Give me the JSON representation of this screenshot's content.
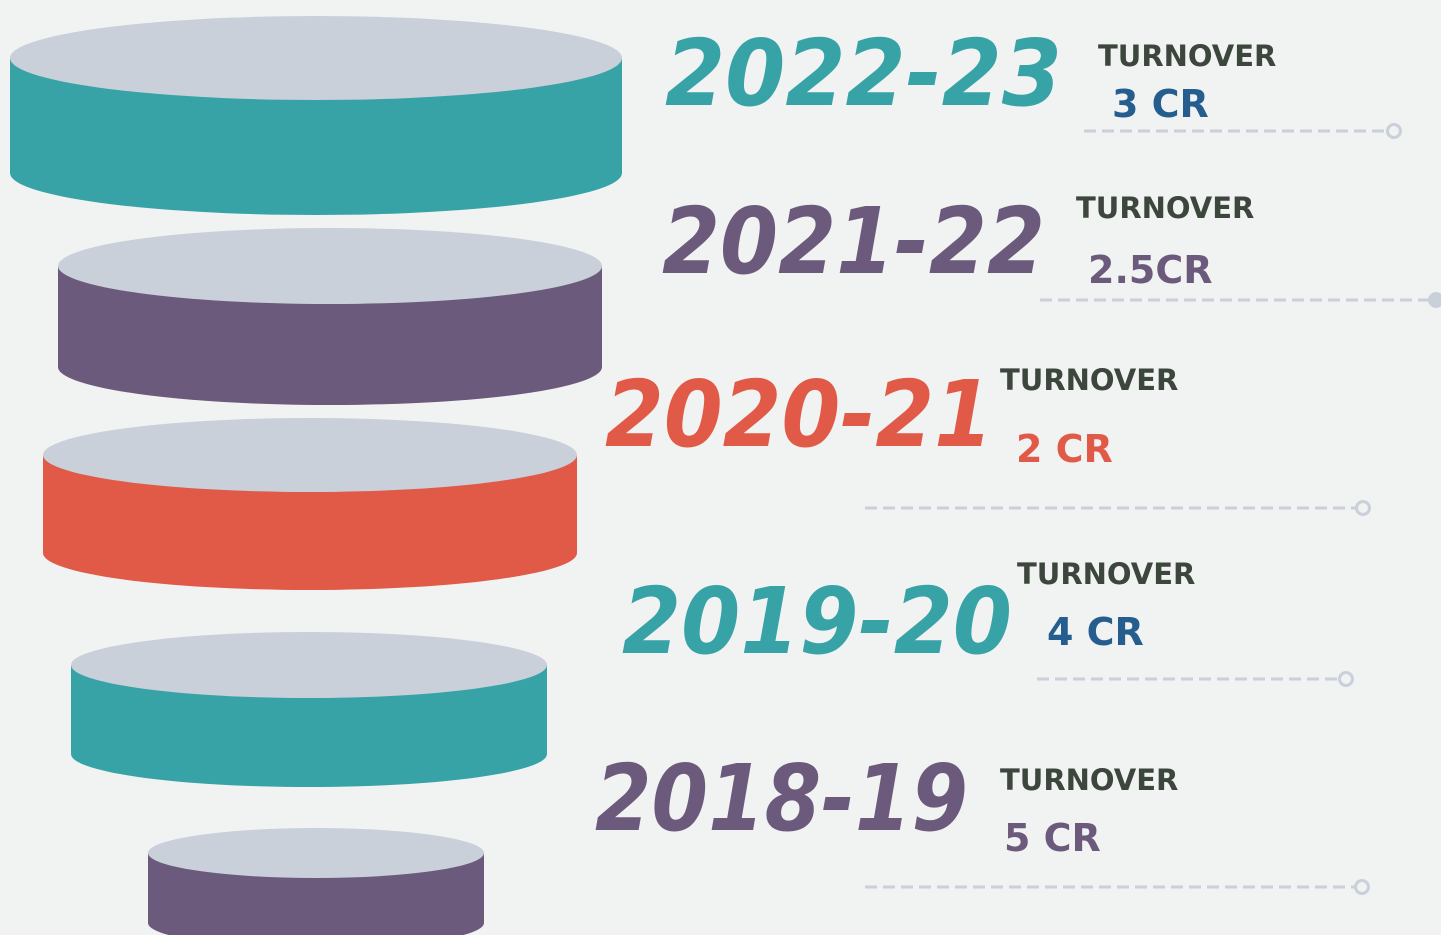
{
  "items": [
    {
      "year": "2022-23",
      "label": "TURNOVER",
      "value": "3 CR"
    },
    {
      "year": "2021-22",
      "label": "TURNOVER",
      "value": "2.5CR"
    },
    {
      "year": "2020-21",
      "label": "TURNOVER",
      "value": "2 CR"
    },
    {
      "year": "2019-20",
      "label": "TURNOVER",
      "value": "4 CR"
    },
    {
      "year": "2018-19",
      "label": "TURNOVER",
      "value": "5 CR"
    }
  ]
}
